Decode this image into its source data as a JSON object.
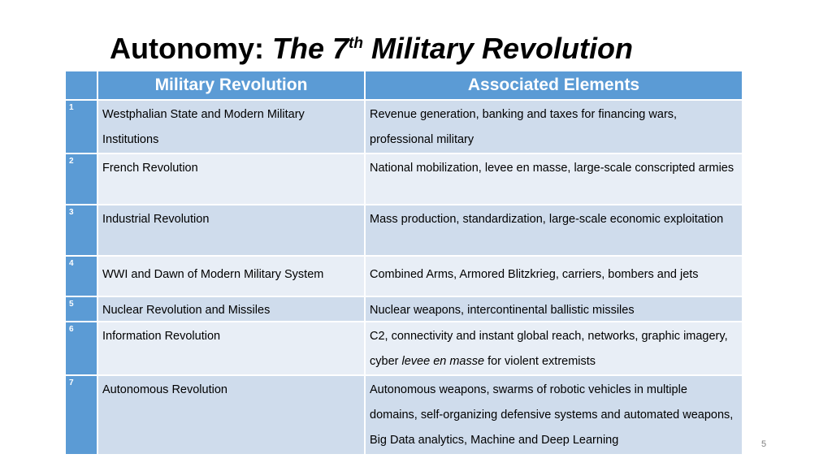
{
  "slide": {
    "title_prefix": "Autonomy: ",
    "title_italic_before": "The 7",
    "title_sup": "th",
    "title_italic_after": " Military Revolution",
    "page_number": "5"
  },
  "table": {
    "headers": [
      "",
      "Military Revolution",
      "Associated Elements"
    ],
    "rows": [
      {
        "num": "1",
        "revolution": "Westphalian State and Modern Military Institutions",
        "elements": "Revenue generation, banking and taxes for financing wars, professional military"
      },
      {
        "num": "2",
        "revolution": "French Revolution",
        "elements": "National mobilization, levee en masse, large-scale conscripted armies"
      },
      {
        "num": "3",
        "revolution": "Industrial Revolution",
        "elements": "Mass production, standardization, large-scale economic exploitation"
      },
      {
        "num": "4",
        "revolution": "WWI and Dawn of Modern Military System",
        "elements": "Combined Arms, Armored Blitzkrieg, carriers, bombers and jets"
      },
      {
        "num": "5",
        "revolution": "Nuclear Revolution and Missiles",
        "elements": "Nuclear weapons, intercontinental ballistic missiles"
      },
      {
        "num": "6",
        "revolution": "Information Revolution",
        "elements_before": "C2, connectivity and instant global reach, networks, graphic imagery, cyber ",
        "elements_italic": "levee en masse",
        "elements_after": " for violent extremists"
      },
      {
        "num": "7",
        "revolution": "Autonomous Revolution",
        "elements": "Autonomous weapons, swarms of robotic vehicles in multiple domains, self-organizing defensive systems and automated weapons, Big Data analytics, Machine and  Deep Learning"
      }
    ]
  }
}
